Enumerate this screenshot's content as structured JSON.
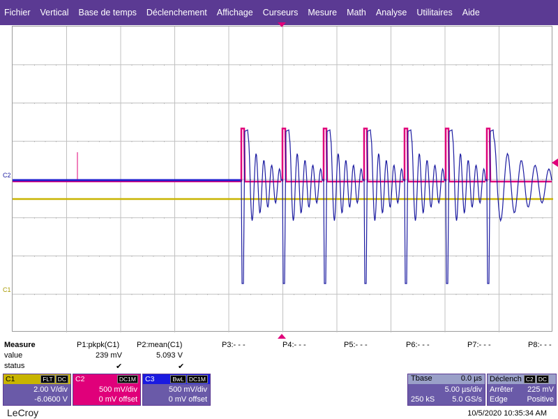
{
  "menu": [
    "Fichier",
    "Vertical",
    "Base de temps",
    "Déclenchement",
    "Affichage",
    "Curseurs",
    "Mesure",
    "Math",
    "Analyse",
    "Utilitaires",
    "Aide"
  ],
  "markers": {
    "c2": "C2",
    "c1": "C1"
  },
  "colors": {
    "c1": "#c8b400",
    "c2": "#e0007a",
    "c3": "#1a1aa0",
    "menu_bg": "#5b3a93"
  },
  "measure": {
    "row_labels": [
      "Measure",
      "value",
      "status"
    ],
    "params": [
      {
        "name": "P1:pkpk(C1)",
        "value": "239 mV",
        "status": "✔"
      },
      {
        "name": "P2:mean(C1)",
        "value": "5.093 V",
        "status": "✔"
      },
      {
        "name": "P3:- - -",
        "value": "",
        "status": ""
      },
      {
        "name": "P4:- - -",
        "value": "",
        "status": ""
      },
      {
        "name": "P5:- - -",
        "value": "",
        "status": ""
      },
      {
        "name": "P6:- - -",
        "value": "",
        "status": ""
      },
      {
        "name": "P7:- - -",
        "value": "",
        "status": ""
      },
      {
        "name": "P8:- - -",
        "value": "",
        "status": ""
      }
    ]
  },
  "channels": [
    {
      "name": "C1",
      "badges": [
        "FLT",
        "DC"
      ],
      "scale": "2.00 V/div",
      "offset": "-6.0600 V"
    },
    {
      "name": "C2",
      "badges": [
        "DC1M"
      ],
      "scale": "500 mV/div",
      "offset": "0 mV offset"
    },
    {
      "name": "C3",
      "badges": [
        "BwL",
        "DC1M"
      ],
      "scale": "500 mV/div",
      "offset": "0 mV offset"
    }
  ],
  "timebase": {
    "label": "Tbase",
    "delay": "0.0 µs",
    "scale": "5.00 µs/div",
    "samples": "250 kS",
    "rate": "5.0 GS/s"
  },
  "trigger": {
    "label": "Déclench",
    "source_badges": [
      "C2",
      "DC"
    ],
    "mode": "Arrêter",
    "level": "225 mV",
    "type": "Edge",
    "slope": "Positive"
  },
  "logo": "LeCroy",
  "timestamp": "10/5/2020 10:35:34 AM"
}
